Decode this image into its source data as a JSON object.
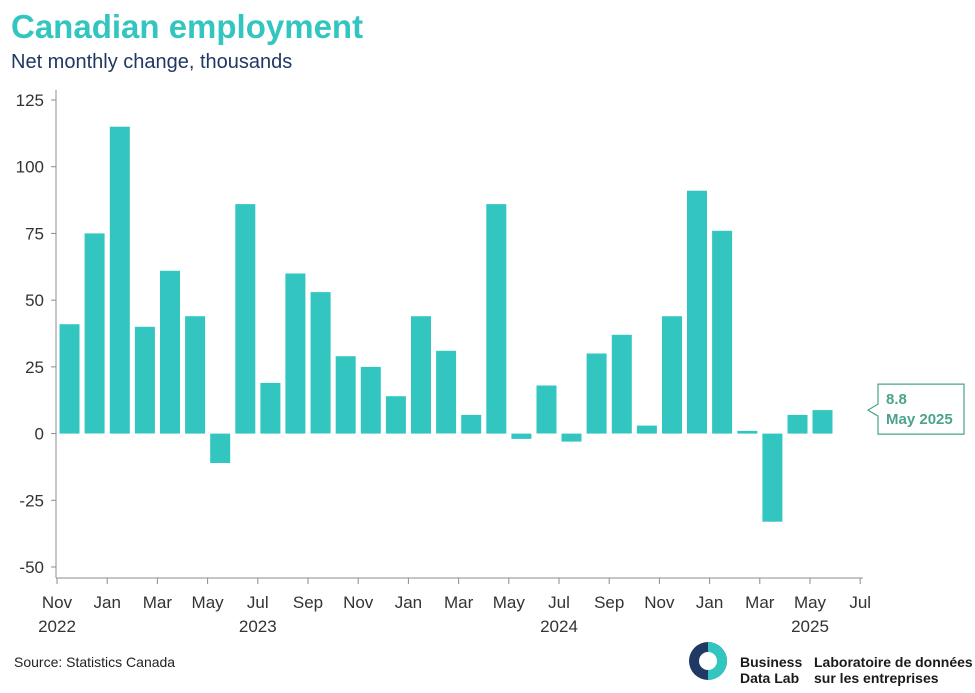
{
  "header": {
    "title": "Canadian employment",
    "subtitle": "Net monthly change, thousands"
  },
  "source": "Source: Statistics Canada",
  "brand": {
    "line1a": "Business",
    "line1b": "Data Lab",
    "line2a": "Laboratoire de données",
    "line2b": "sur les entreprises",
    "logo_icon": "business-data-lab-logo-icon",
    "colors": {
      "navy": "#1f3864",
      "teal": "#33c6c1"
    }
  },
  "callout": {
    "value": "8.8",
    "label": "May 2025",
    "color": "#4aa38c"
  },
  "chart_data": {
    "type": "bar",
    "color": "#33c6c1",
    "ylim": [
      -50,
      125
    ],
    "yticks": [
      -50,
      -25,
      0,
      25,
      50,
      75,
      100,
      125
    ],
    "grid": false,
    "x_tick_labels": [
      {
        "index": 0,
        "month": "Nov",
        "year": "2022"
      },
      {
        "index": 2,
        "month": "Jan",
        "year": ""
      },
      {
        "index": 4,
        "month": "Mar",
        "year": ""
      },
      {
        "index": 6,
        "month": "May",
        "year": ""
      },
      {
        "index": 8,
        "month": "Jul",
        "year": "2023"
      },
      {
        "index": 10,
        "month": "Sep",
        "year": ""
      },
      {
        "index": 12,
        "month": "Nov",
        "year": ""
      },
      {
        "index": 14,
        "month": "Jan",
        "year": ""
      },
      {
        "index": 16,
        "month": "Mar",
        "year": ""
      },
      {
        "index": 18,
        "month": "May",
        "year": ""
      },
      {
        "index": 20,
        "month": "Jul",
        "year": "2024"
      },
      {
        "index": 22,
        "month": "Sep",
        "year": ""
      },
      {
        "index": 24,
        "month": "Nov",
        "year": ""
      },
      {
        "index": 26,
        "month": "Jan",
        "year": ""
      },
      {
        "index": 28,
        "month": "Mar",
        "year": ""
      },
      {
        "index": 30,
        "month": "May",
        "year": "2025"
      },
      {
        "index": 32,
        "month": "Jul",
        "year": ""
      }
    ],
    "values": [
      41,
      75,
      115,
      40,
      61,
      44,
      -11,
      86,
      19,
      60,
      53,
      29,
      25,
      14,
      44,
      31,
      7,
      86,
      -2,
      18,
      -3,
      30,
      37,
      3,
      44,
      91,
      76,
      1,
      -33,
      7,
      8.8
    ]
  }
}
